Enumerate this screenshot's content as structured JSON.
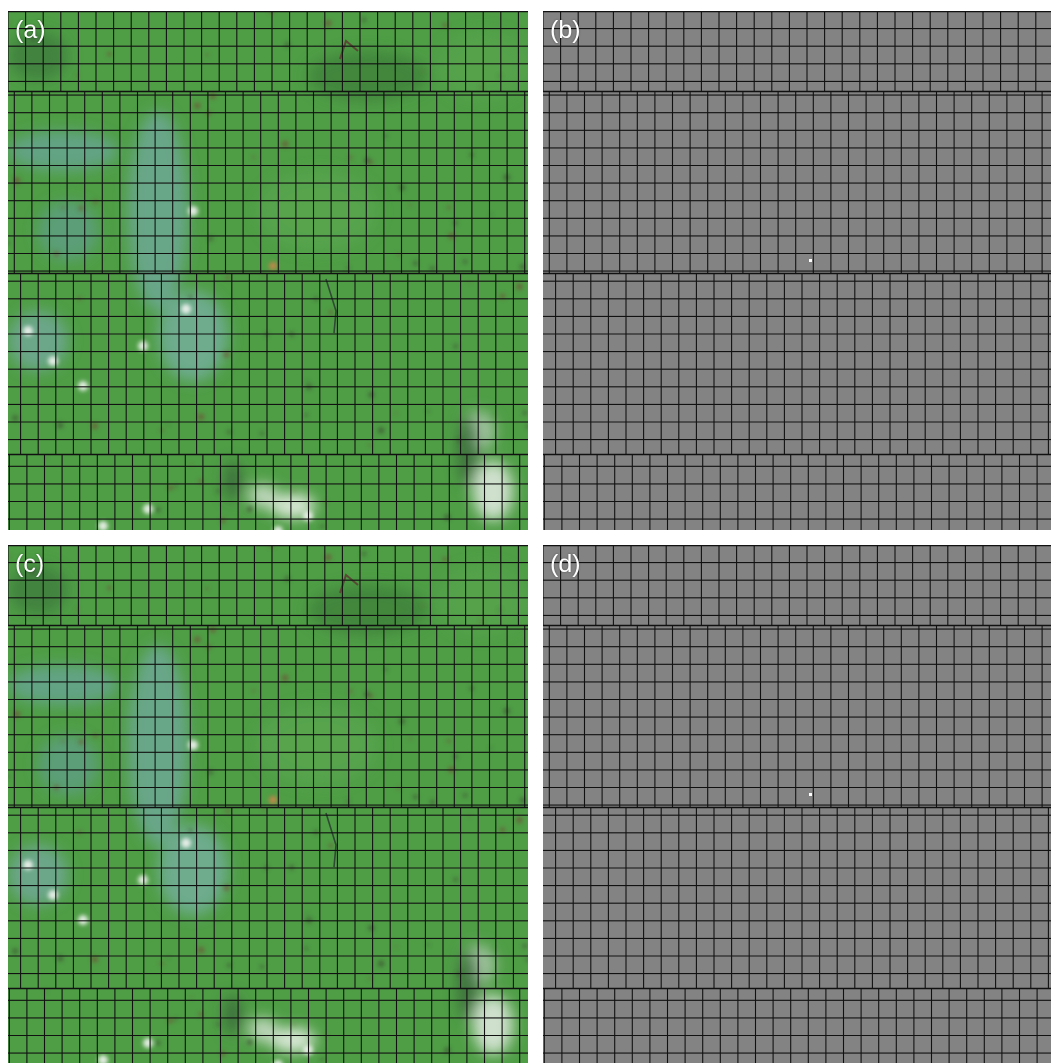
{
  "figure": {
    "panels": [
      {
        "id": "a",
        "label": "(a)",
        "kind": "green-satellite-mosaic"
      },
      {
        "id": "b",
        "label": "(b)",
        "kind": "gray-tile-grid"
      },
      {
        "id": "c",
        "label": "(c)",
        "kind": "green-satellite-mosaic"
      },
      {
        "id": "d",
        "label": "(d)",
        "kind": "gray-tile-grid"
      }
    ],
    "colors": {
      "vegetation": "#4f9e46",
      "gray_tile": "#838383",
      "grid_line": "#111111",
      "background": "#ffffff",
      "label_text": "#ffffff"
    }
  }
}
